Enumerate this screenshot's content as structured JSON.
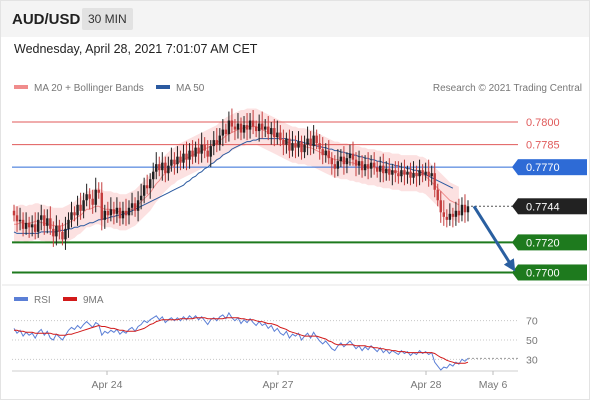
{
  "header": {
    "symbol": "AUD/USD",
    "timeframe": "30 MIN",
    "datetime": "Wednesday, April 28, 2021 7:01:07 AM CET"
  },
  "legend": {
    "ma20_label": "MA 20 + Bollinger Bands",
    "ma50_label": "MA 50",
    "copyright": "Research © 2021 Trading Central"
  },
  "rsi_legend": {
    "rsi_label": "RSI",
    "ma_label": "9MA"
  },
  "colors": {
    "resistance": "#e05a5a",
    "pivot": "#2e6bd6",
    "support": "#1e7a1e",
    "current": "#222222",
    "ma20": "#f08c8c",
    "ma50": "#2b5aa0",
    "band_fill": "#fbd9d9",
    "candle_up": "#1f1f1f",
    "candle_down": "#c43c3c",
    "rsi": "#5b7fd6",
    "rsi_ma": "#d21a1a",
    "arrow": "#2a5fa0"
  },
  "chart_data": [
    {
      "type": "candlestick",
      "title": "AUD/USD 30 MIN",
      "y_unit": "price",
      "ylim": [
        0.7693,
        0.7814
      ],
      "x_ticks": [
        "Apr 24",
        "Apr 27",
        "Apr 28",
        "May 6"
      ],
      "levels": [
        {
          "value": 0.78,
          "label": "0.7800",
          "kind": "resistance"
        },
        {
          "value": 0.7785,
          "label": "0.7785",
          "kind": "resistance"
        },
        {
          "value": 0.777,
          "label": "0.7770",
          "kind": "pivot"
        },
        {
          "value": 0.7744,
          "label": "0.7744",
          "kind": "current"
        },
        {
          "value": 0.772,
          "label": "0.7720",
          "kind": "support"
        },
        {
          "value": 0.77,
          "label": "0.7700",
          "kind": "support"
        }
      ],
      "close": [
        0.7738,
        0.7734,
        0.7735,
        0.7729,
        0.7733,
        0.773,
        0.7732,
        0.7727,
        0.7735,
        0.7738,
        0.7731,
        0.7736,
        0.7729,
        0.7724,
        0.7731,
        0.7727,
        0.7722,
        0.7729,
        0.7735,
        0.774,
        0.7738,
        0.7745,
        0.7741,
        0.7748,
        0.7752,
        0.7749,
        0.7745,
        0.7755,
        0.7753,
        0.7735,
        0.7741,
        0.7738,
        0.7742,
        0.7739,
        0.7743,
        0.7736,
        0.7741,
        0.7738,
        0.7743,
        0.7746,
        0.7741,
        0.7748,
        0.7751,
        0.7758,
        0.7756,
        0.7762,
        0.7767,
        0.7772,
        0.7768,
        0.7773,
        0.7766,
        0.7771,
        0.7775,
        0.7772,
        0.7777,
        0.7773,
        0.7779,
        0.7775,
        0.7781,
        0.7777,
        0.7783,
        0.7779,
        0.7785,
        0.7781,
        0.7777,
        0.7784,
        0.7788,
        0.7785,
        0.7791,
        0.7795,
        0.7792,
        0.7801,
        0.7797,
        0.7795,
        0.7799,
        0.7793,
        0.7798,
        0.7795,
        0.7801,
        0.7797,
        0.7794,
        0.7799,
        0.7795,
        0.7797,
        0.7792,
        0.7796,
        0.779,
        0.7793,
        0.7788,
        0.7785,
        0.7789,
        0.7781,
        0.7786,
        0.7783,
        0.7787,
        0.778,
        0.7785,
        0.7789,
        0.7784,
        0.7791,
        0.7786,
        0.7782,
        0.7778,
        0.7781,
        0.7776,
        0.7772,
        0.7769,
        0.7774,
        0.7777,
        0.7772,
        0.7776,
        0.7779,
        0.7775,
        0.7771,
        0.7774,
        0.7768,
        0.7772,
        0.7769,
        0.7773,
        0.777,
        0.7767,
        0.7771,
        0.7766,
        0.7769,
        0.7765,
        0.7768,
        0.7766,
        0.7764,
        0.7768,
        0.7765,
        0.7767,
        0.7763,
        0.7766,
        0.7764,
        0.7768,
        0.7765,
        0.7767,
        0.7764,
        0.7766,
        0.7755,
        0.7748,
        0.774,
        0.7737,
        0.7735,
        0.7739,
        0.7737,
        0.7741,
        0.7738,
        0.7745,
        0.774,
        0.7744
      ],
      "series": [
        {
          "name": "MA 20 + Bollinger Bands",
          "values": [
            0.7732,
            0.7732,
            0.7733,
            0.7733,
            0.7732,
            0.7733,
            0.7733,
            0.7734,
            0.7734,
            0.7733,
            0.7733,
            0.7732,
            0.7732,
            0.7731,
            0.7731,
            0.7731,
            0.7731,
            0.7732,
            0.7733,
            0.7734,
            0.7735,
            0.7737,
            0.7738,
            0.774,
            0.7742,
            0.7742,
            0.7743,
            0.7744,
            0.7744,
            0.7743,
            0.7742,
            0.7742,
            0.7742,
            0.7741,
            0.7741,
            0.774,
            0.774,
            0.774,
            0.7741,
            0.7742,
            0.7743,
            0.7745,
            0.7747,
            0.7749,
            0.7751,
            0.7753,
            0.7756,
            0.7759,
            0.7761,
            0.7764,
            0.7766,
            0.7768,
            0.777,
            0.7771,
            0.7773,
            0.7774,
            0.7775,
            0.7776,
            0.7777,
            0.7778,
            0.7779,
            0.778,
            0.7781,
            0.7782,
            0.7783,
            0.7784,
            0.7785,
            0.7786,
            0.7788,
            0.7789,
            0.7791,
            0.7792,
            0.7793,
            0.7794,
            0.7795,
            0.7796,
            0.7796,
            0.7797,
            0.7797,
            0.7797,
            0.7797,
            0.7796,
            0.7795,
            0.7794,
            0.7793,
            0.7792,
            0.7791,
            0.779,
            0.7789,
            0.7788,
            0.7787,
            0.7786,
            0.7785,
            0.7785,
            0.7784,
            0.7784,
            0.7784,
            0.7783,
            0.7783,
            0.7782,
            0.7781,
            0.778,
            0.7779,
            0.7778,
            0.7777,
            0.7776,
            0.7775,
            0.7775,
            0.7774,
            0.7774,
            0.7774,
            0.7773,
            0.7773,
            0.7772,
            0.7772,
            0.7771,
            0.7771,
            0.777,
            0.777,
            0.777,
            0.7769,
            0.7769,
            0.7768,
            0.7768,
            0.7768,
            0.7767,
            0.7767,
            0.7767,
            0.7766,
            0.7766,
            0.7766,
            0.7766,
            0.7766,
            0.7766,
            0.7765,
            0.7765,
            0.7764,
            0.7762,
            0.776,
            0.7758,
            0.7756,
            0.7754,
            0.7752,
            0.775,
            0.7748,
            0.7747,
            0.7746,
            0.7745
          ]
        },
        {
          "name": "MA 50",
          "values": [
            0.7727,
            0.7726,
            0.7726,
            0.7726,
            0.7726,
            0.7726,
            0.7726,
            0.7726,
            0.7726,
            0.7727,
            0.7727,
            0.7727,
            0.7727,
            0.7727,
            0.7727,
            0.7728,
            0.7728,
            0.7728,
            0.7729,
            0.7729,
            0.773,
            0.773,
            0.7731,
            0.7731,
            0.7732,
            0.7733,
            0.7733,
            0.7734,
            0.7735,
            0.7735,
            0.7736,
            0.7736,
            0.7737,
            0.7737,
            0.7738,
            0.7738,
            0.7739,
            0.7739,
            0.774,
            0.7741,
            0.7742,
            0.7743,
            0.7744,
            0.7745,
            0.7746,
            0.7747,
            0.7748,
            0.7749,
            0.775,
            0.7751,
            0.7752,
            0.7753,
            0.7754,
            0.7755,
            0.7756,
            0.7757,
            0.7758,
            0.776,
            0.7761,
            0.7763,
            0.7764,
            0.7766,
            0.7767,
            0.7769,
            0.777,
            0.7772,
            0.7773,
            0.7775,
            0.7776,
            0.7778,
            0.7779,
            0.778,
            0.7782,
            0.7783,
            0.7784,
            0.7785,
            0.7786,
            0.7787,
            0.7787,
            0.7788,
            0.7788,
            0.7789,
            0.7789,
            0.7789,
            0.7789,
            0.7789,
            0.7789,
            0.7789,
            0.7789,
            0.7789,
            0.7789,
            0.7788,
            0.7788,
            0.7788,
            0.7787,
            0.7787,
            0.7786,
            0.7786,
            0.7785,
            0.7785,
            0.7784,
            0.7784,
            0.7783,
            0.7783,
            0.7782,
            0.7782,
            0.7781,
            0.7781,
            0.778,
            0.778,
            0.7779,
            0.7779,
            0.7778,
            0.7778,
            0.7777,
            0.7777,
            0.7776,
            0.7776,
            0.7775,
            0.7775,
            0.7774,
            0.7774,
            0.7773,
            0.7773,
            0.7772,
            0.7772,
            0.7771,
            0.7771,
            0.777,
            0.777,
            0.7769,
            0.7769,
            0.7768,
            0.7768,
            0.7767,
            0.7766,
            0.7765,
            0.7764,
            0.7763,
            0.7762,
            0.7761,
            0.776,
            0.7759,
            0.7758,
            0.7757,
            0.7756
          ]
        }
      ],
      "band_width": 0.0012,
      "projection": {
        "from": 0.7744,
        "to": 0.77
      }
    },
    {
      "type": "line",
      "title": "RSI",
      "ylim": [
        20,
        80
      ],
      "y_ticks": [
        70,
        50,
        30
      ],
      "series": [
        {
          "name": "RSI",
          "values": [
            62,
            57,
            60,
            54,
            58,
            55,
            57,
            52,
            58,
            61,
            55,
            59,
            52,
            50,
            56,
            53,
            50,
            55,
            60,
            63,
            61,
            65,
            62,
            66,
            69,
            66,
            63,
            68,
            66,
            55,
            59,
            57,
            60,
            58,
            61,
            56,
            59,
            57,
            61,
            63,
            59,
            64,
            66,
            70,
            68,
            71,
            73,
            75,
            71,
            74,
            68,
            71,
            73,
            70,
            73,
            70,
            74,
            71,
            75,
            72,
            75,
            71,
            74,
            70,
            66,
            71,
            73,
            70,
            74,
            76,
            72,
            78,
            73,
            70,
            73,
            67,
            71,
            68,
            72,
            68,
            65,
            69,
            65,
            67,
            62,
            65,
            59,
            62,
            57,
            55,
            59,
            52,
            56,
            54,
            57,
            50,
            54,
            57,
            52,
            58,
            53,
            49,
            46,
            49,
            45,
            41,
            39,
            44,
            47,
            43,
            46,
            49,
            45,
            41,
            44,
            39,
            43,
            40,
            44,
            41,
            38,
            42,
            37,
            40,
            36,
            39,
            37,
            35,
            39,
            36,
            38,
            34,
            37,
            35,
            39,
            36,
            38,
            35,
            37,
            27,
            23,
            19,
            22,
            21,
            25,
            23,
            27,
            25,
            30,
            28,
            31
          ]
        },
        {
          "name": "9MA",
          "values": [
            60,
            60,
            59,
            59,
            58,
            58,
            58,
            57,
            57,
            57,
            57,
            57,
            57,
            56,
            56,
            55,
            55,
            55,
            56,
            56,
            57,
            58,
            59,
            60,
            61,
            62,
            63,
            64,
            65,
            64,
            64,
            63,
            62,
            62,
            61,
            60,
            60,
            59,
            59,
            59,
            59,
            60,
            61,
            62,
            64,
            66,
            67,
            69,
            70,
            71,
            71,
            71,
            71,
            71,
            71,
            72,
            72,
            72,
            72,
            72,
            73,
            73,
            73,
            73,
            72,
            72,
            72,
            72,
            72,
            72,
            73,
            73,
            73,
            73,
            73,
            72,
            72,
            71,
            71,
            71,
            70,
            69,
            69,
            68,
            67,
            67,
            66,
            65,
            63,
            62,
            61,
            59,
            58,
            57,
            56,
            55,
            54,
            54,
            54,
            54,
            54,
            53,
            52,
            51,
            49,
            48,
            46,
            45,
            45,
            45,
            45,
            45,
            45,
            44,
            44,
            44,
            44,
            43,
            43,
            42,
            42,
            41,
            41,
            40,
            40,
            39,
            39,
            38,
            38,
            38,
            37,
            37,
            37,
            37,
            37,
            37,
            37,
            37,
            37,
            36,
            34,
            32,
            31,
            29,
            28,
            27,
            26,
            26,
            26,
            26,
            27
          ]
        }
      ]
    }
  ]
}
